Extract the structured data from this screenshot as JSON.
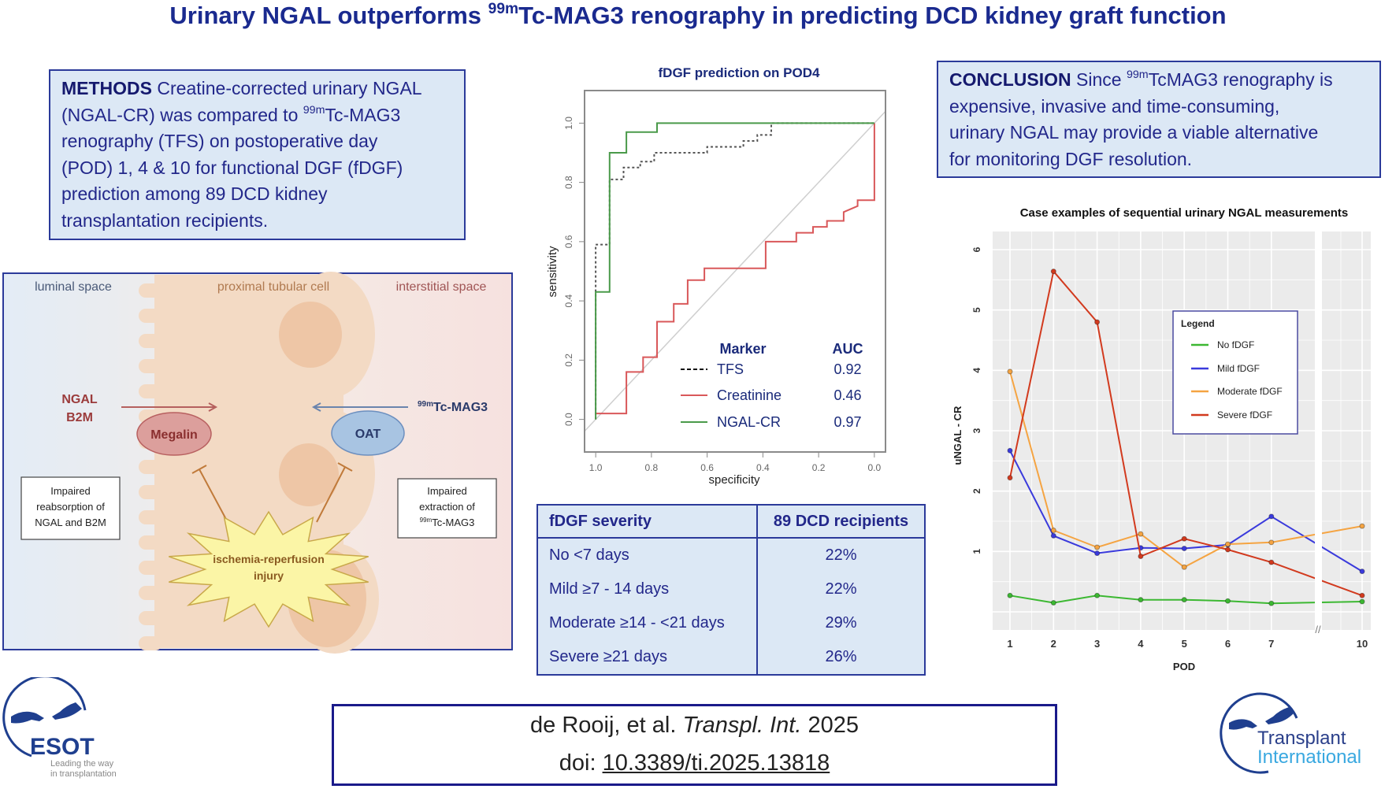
{
  "title": {
    "pre": "Urinary NGAL outperforms ",
    "sup": "99m",
    "post": "Tc-MAG3 renography in predicting DCD kidney graft function"
  },
  "methods": {
    "label": "METHODS",
    "l1": " Creatine-corrected urinary NGAL",
    "l2a": "(NGAL-CR) was compared to ",
    "l2sup": "99m",
    "l2b": "Tc-MAG3",
    "l3": "renography (TFS) on postoperative day",
    "l4": "(POD) 1, 4 & 10 for functional DGF (fDGF)",
    "l5": "prediction among 89 DCD kidney",
    "l6": "transplantation recipients."
  },
  "conclusion": {
    "label": "CONCLUSION",
    "l1a": " Since ",
    "l1sup": "99m",
    "l1b": "TcMAG3 renography is",
    "l2": "expensive, invasive and time-consuming,",
    "l3": "urinary NGAL may provide a viable alternative",
    "l4": "for monitoring DGF resolution."
  },
  "diagram": {
    "luminal": "luminal space",
    "cell": "proximal tubular cell",
    "interstitial": "interstitial space",
    "ngal": "NGAL",
    "b2m": "B2M",
    "tracer_sup": "99m",
    "tracer": "Tc-MAG3",
    "megalin": "Megalin",
    "oat": "OAT",
    "left_box": [
      "Impaired",
      "reabsorption of",
      "NGAL and B2M"
    ],
    "right_box": {
      "l1": "Impaired",
      "l2": "extraction of",
      "l3sup": "99m",
      "l3": "Tc-MAG3"
    },
    "injury": [
      "ischemia-reperfusion",
      "injury"
    ]
  },
  "table": {
    "headers": [
      "fDGF severity",
      "89 DCD recipients"
    ],
    "rows": [
      [
        "No <7 days",
        "22%"
      ],
      [
        "Mild ≥7 - 14 days",
        "22%"
      ],
      [
        "Moderate ≥14 - <21 days",
        "29%"
      ],
      [
        "Severe ≥21 days",
        "26%"
      ]
    ]
  },
  "citation": {
    "authors": "de Rooij, et al. ",
    "journal": "Transpl. Int.",
    "year": " 2025",
    "doi_label": "doi: ",
    "doi": "10.3389/ti.2025.13818"
  },
  "logos": {
    "esot": {
      "name": "ESOT",
      "tagline1": "Leading the way",
      "tagline2": "in transplantation"
    },
    "ti": {
      "l1": "Transplant",
      "l2": "International"
    }
  },
  "chart_data": [
    {
      "type": "line",
      "subtype": "ROC step curves",
      "title": "fDGF prediction on POD4",
      "xlabel": "specificity",
      "ylabel": "sensitivity",
      "xlim": [
        1.04,
        -0.04
      ],
      "ylim": [
        -0.11,
        1.11
      ],
      "x_reversed": true,
      "xticks": [
        1.0,
        0.8,
        0.6,
        0.4,
        0.2,
        0.0
      ],
      "yticks": [
        0.0,
        0.2,
        0.4,
        0.6,
        0.8,
        1.0
      ],
      "legend": {
        "header_marker": "Marker",
        "header_auc": "AUC",
        "placement": "bottom-right"
      },
      "series": [
        {
          "name": "TFS",
          "auc": "0.92",
          "color": "#555555",
          "style": "dotted",
          "points": [
            [
              1,
              0
            ],
            [
              1,
              0.59
            ],
            [
              0.95,
              0.59
            ],
            [
              0.95,
              0.81
            ],
            [
              0.9,
              0.81
            ],
            [
              0.9,
              0.85
            ],
            [
              0.84,
              0.85
            ],
            [
              0.84,
              0.87
            ],
            [
              0.79,
              0.87
            ],
            [
              0.79,
              0.9
            ],
            [
              0.6,
              0.9
            ],
            [
              0.6,
              0.92
            ],
            [
              0.47,
              0.92
            ],
            [
              0.47,
              0.94
            ],
            [
              0.42,
              0.94
            ],
            [
              0.42,
              0.96
            ],
            [
              0.37,
              0.96
            ],
            [
              0.37,
              1.0
            ],
            [
              0,
              1.0
            ]
          ]
        },
        {
          "name": "Creatinine",
          "auc": "0.46",
          "color": "#d9585a",
          "style": "solid",
          "points": [
            [
              1,
              0.02
            ],
            [
              0.89,
              0.02
            ],
            [
              0.89,
              0.16
            ],
            [
              0.83,
              0.16
            ],
            [
              0.83,
              0.21
            ],
            [
              0.78,
              0.21
            ],
            [
              0.78,
              0.33
            ],
            [
              0.72,
              0.33
            ],
            [
              0.72,
              0.39
            ],
            [
              0.67,
              0.39
            ],
            [
              0.67,
              0.47
            ],
            [
              0.61,
              0.47
            ],
            [
              0.61,
              0.51
            ],
            [
              0.39,
              0.51
            ],
            [
              0.39,
              0.6
            ],
            [
              0.28,
              0.6
            ],
            [
              0.28,
              0.63
            ],
            [
              0.22,
              0.63
            ],
            [
              0.22,
              0.65
            ],
            [
              0.17,
              0.65
            ],
            [
              0.17,
              0.67
            ],
            [
              0.11,
              0.67
            ],
            [
              0.11,
              0.7
            ],
            [
              0.06,
              0.72
            ],
            [
              0.06,
              0.74
            ],
            [
              0,
              0.74
            ],
            [
              0,
              1.0
            ]
          ]
        },
        {
          "name": "NGAL-CR",
          "auc": "0.97",
          "color": "#4a9a4a",
          "style": "solid",
          "points": [
            [
              1,
              0
            ],
            [
              1,
              0.43
            ],
            [
              0.95,
              0.43
            ],
            [
              0.95,
              0.9
            ],
            [
              0.89,
              0.9
            ],
            [
              0.89,
              0.97
            ],
            [
              0.78,
              0.97
            ],
            [
              0.78,
              1.0
            ],
            [
              0,
              1.0
            ]
          ]
        }
      ],
      "reference_line": "diagonal",
      "grid": false
    },
    {
      "type": "line",
      "title": "Case examples of sequential urinary NGAL measurements",
      "xlabel": "POD",
      "ylabel": "uNGAL - CR",
      "x": [
        1,
        2,
        3,
        4,
        5,
        6,
        7,
        10
      ],
      "xtick_labels": [
        "1",
        "2",
        "3",
        "4",
        "5",
        "6",
        "7",
        "10"
      ],
      "axis_break_label": "//",
      "yticks": [
        1,
        2,
        3,
        4,
        5,
        6
      ],
      "ylim": [
        -0.3,
        6.3
      ],
      "grid": true,
      "legend": {
        "title": "Legend",
        "placement": "center-right"
      },
      "series": [
        {
          "name": "No fDGF",
          "color": "#3cb832",
          "values": [
            0.27,
            0.15,
            0.27,
            0.2,
            0.2,
            0.18,
            0.14,
            0.17
          ]
        },
        {
          "name": "Mild fDGF",
          "color": "#3a3adc",
          "values": [
            2.67,
            1.26,
            0.97,
            1.06,
            1.05,
            1.11,
            1.58,
            0.67
          ]
        },
        {
          "name": "Moderate fDGF",
          "color": "#f5a442",
          "values": [
            3.98,
            1.35,
            1.07,
            1.29,
            0.74,
            1.12,
            1.15,
            1.42
          ]
        },
        {
          "name": "Severe fDGF",
          "color": "#d23a1e",
          "values": [
            2.22,
            5.64,
            4.8,
            0.92,
            1.21,
            1.03,
            0.82,
            0.27
          ]
        }
      ]
    }
  ]
}
